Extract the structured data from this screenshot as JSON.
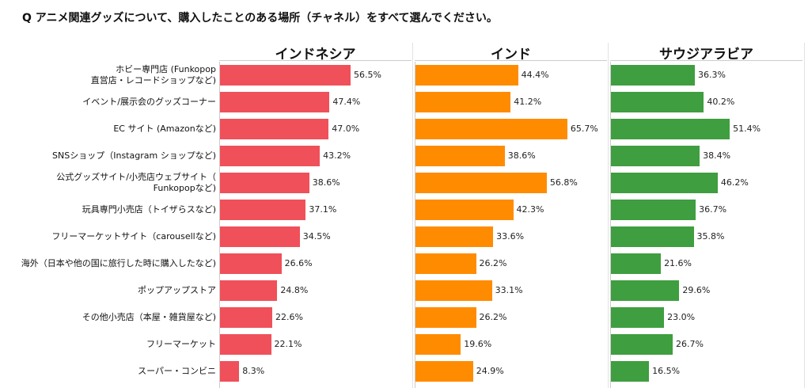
{
  "title": "Q アニメ関連グッズについて、購入したことのある場所（チャネル）をすべて選んでください。",
  "chart_data": {
    "type": "bar",
    "orientation": "horizontal",
    "title": "Q アニメ関連グッズについて、購入したことのある場所（チャネル）をすべて選んでください。",
    "categories": [
      "ホビー専門店 (Funkopop\n直営店・レコードショップなど)",
      "イベント/展示会のグッズコーナー",
      "EC サイト (Amazonなど)",
      "SNSショップ（Instagram ショップなど)",
      "公式グッズサイト/小売店ウェブサイト（\nFunkopopなど)",
      "玩具専門小売店（トイザらスなど)",
      "フリーマーケットサイト（carousellなど)",
      "海外（日本や他の国に旅行した時に購入したなど)",
      "ポップアップストア",
      "その他小売店（本屋・雑貨屋など)",
      "フリーマーケット",
      "スーパー・コンビニ"
    ],
    "unit": "%",
    "xlim": [
      0,
      80
    ],
    "grid": false,
    "series": [
      {
        "name": "インドネシア",
        "color": "#f0505a",
        "values": [
          56.5,
          47.4,
          47.0,
          43.2,
          38.6,
          37.1,
          34.5,
          26.6,
          24.8,
          22.6,
          22.1,
          8.3
        ]
      },
      {
        "name": "インド",
        "color": "#ff8c00",
        "values": [
          44.4,
          41.2,
          65.7,
          38.6,
          56.8,
          42.3,
          33.6,
          26.2,
          33.1,
          26.2,
          19.6,
          24.9
        ]
      },
      {
        "name": "サウジアラビア",
        "color": "#3f9e3f",
        "values": [
          36.3,
          40.2,
          51.4,
          38.4,
          46.2,
          36.7,
          35.8,
          21.6,
          29.6,
          23.0,
          26.7,
          16.5
        ]
      }
    ]
  }
}
